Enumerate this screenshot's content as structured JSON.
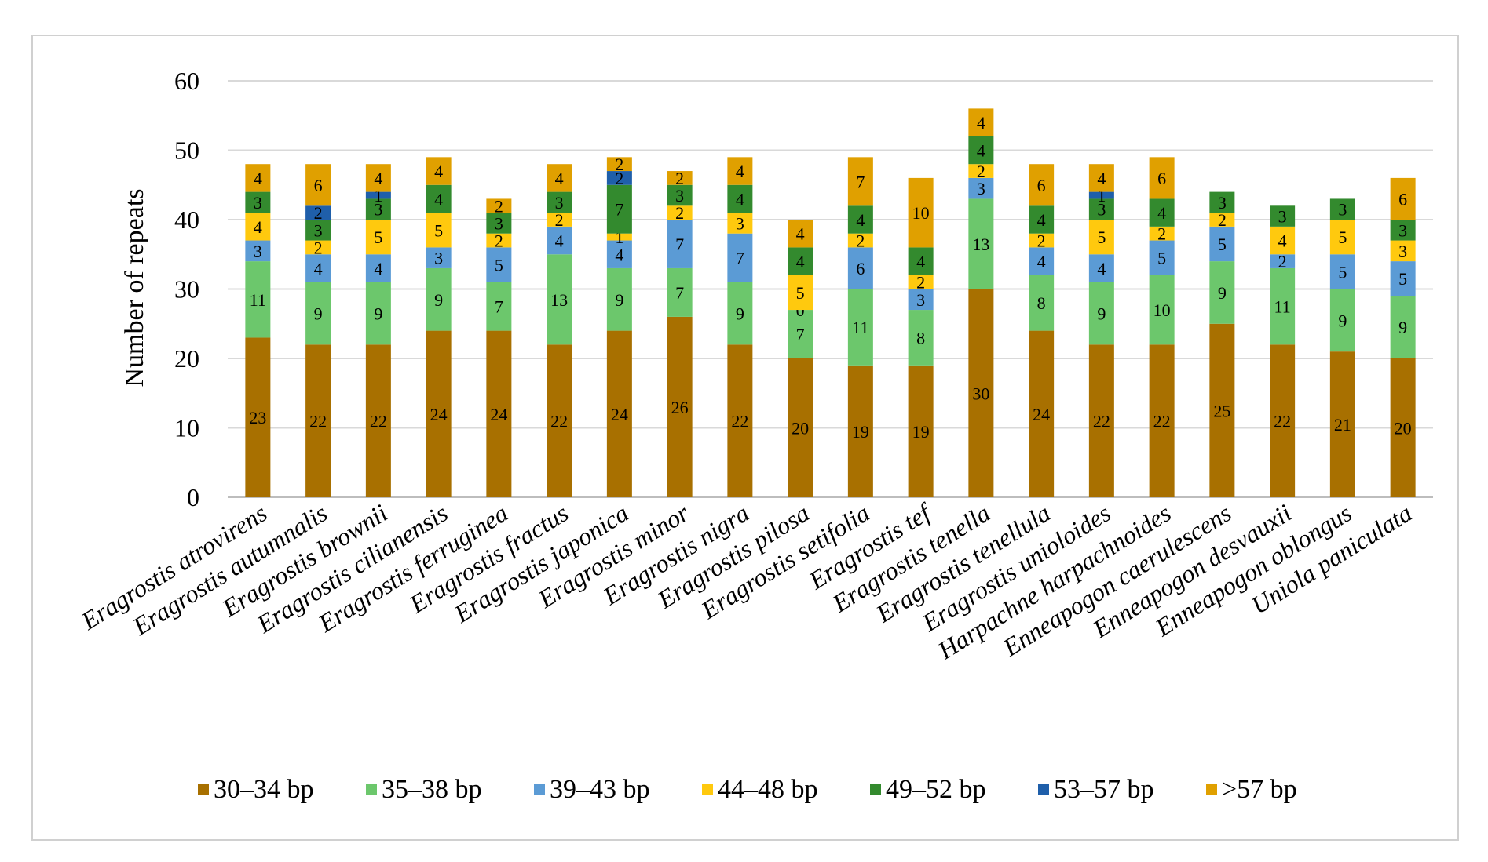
{
  "chart_data": {
    "type": "bar",
    "stacked": true,
    "title": "",
    "xlabel": "",
    "ylabel": "Number of repeats",
    "ylim": [
      0,
      60
    ],
    "yticks": [
      0,
      10,
      20,
      30,
      40,
      50,
      60
    ],
    "grid": true,
    "legend_position": "bottom",
    "categories": [
      "Eragrostis atrovirens",
      "Eragrostis autumnalis",
      "Eragrostis brownii",
      "Eragrostis cilianensis",
      "Eragrostis ferruginea",
      "Eragrostis fractus",
      "Eragrostis japonica",
      "Eragrostis minor",
      "Eragrostis nigra",
      "Eragrostis pilosa",
      "Eragrostis setifolia",
      "Eragrostis tef",
      "Eragrostis tenella",
      "Eragrostis tenellula",
      "Eragrostis unioloides",
      "Harpachne harpachnoides",
      "Enneapogon caerulescens",
      "Enneapogon desvauxii",
      "Enneapogon oblongus",
      "Uniola paniculata"
    ],
    "series": [
      {
        "name": "30–34 bp",
        "color": "#A87000",
        "values": [
          23,
          22,
          22,
          24,
          24,
          22,
          24,
          26,
          22,
          20,
          19,
          19,
          30,
          24,
          22,
          22,
          25,
          22,
          21,
          20
        ]
      },
      {
        "name": "35–38 bp",
        "color": "#6CC76C",
        "values": [
          11,
          9,
          9,
          9,
          7,
          13,
          9,
          7,
          9,
          7,
          11,
          8,
          13,
          8,
          9,
          10,
          9,
          11,
          9,
          9
        ]
      },
      {
        "name": "39–43 bp",
        "color": "#5B9BD5",
        "values": [
          3,
          4,
          4,
          3,
          5,
          4,
          4,
          7,
          7,
          0,
          6,
          3,
          3,
          4,
          4,
          5,
          5,
          2,
          5,
          5
        ]
      },
      {
        "name": "44–48 bp",
        "color": "#FFC90E",
        "values": [
          4,
          2,
          5,
          5,
          2,
          2,
          1,
          2,
          3,
          5,
          2,
          2,
          2,
          2,
          5,
          2,
          2,
          4,
          5,
          3
        ]
      },
      {
        "name": "49–52 bp",
        "color": "#338A2E",
        "values": [
          3,
          3,
          3,
          4,
          3,
          3,
          7,
          3,
          4,
          4,
          4,
          4,
          4,
          4,
          3,
          4,
          3,
          3,
          3,
          3
        ]
      },
      {
        "name": "53–57 bp",
        "color": "#1F5FAA",
        "values": [
          0,
          2,
          1,
          0,
          0,
          0,
          2,
          0,
          0,
          0,
          0,
          0,
          0,
          0,
          1,
          0,
          0,
          0,
          0,
          0
        ]
      },
      {
        "name": ">57 bp",
        "color": "#E0A000",
        "values": [
          4,
          6,
          4,
          4,
          2,
          4,
          2,
          2,
          4,
          4,
          7,
          10,
          4,
          6,
          4,
          6,
          0,
          0,
          0,
          6
        ]
      }
    ],
    "value_labels": [
      [
        "23",
        "11",
        "3",
        "4",
        "3",
        "",
        "4"
      ],
      [
        "22",
        "9",
        "4",
        "2",
        "3",
        "2",
        "6"
      ],
      [
        "22",
        "9",
        "4",
        "5",
        "3",
        "1",
        "4"
      ],
      [
        "24",
        "9",
        "3",
        "5",
        "4",
        "",
        "4"
      ],
      [
        "24",
        "7",
        "5",
        "2",
        "3",
        "",
        "2"
      ],
      [
        "22",
        "13",
        "4",
        "2",
        "3",
        "",
        "4"
      ],
      [
        "24",
        "9",
        "4",
        "1",
        "7",
        "2",
        "2"
      ],
      [
        "26",
        "7",
        "7",
        "2",
        "3",
        "",
        "2"
      ],
      [
        "22",
        "9",
        "7",
        "3",
        "4",
        "",
        "4"
      ],
      [
        "20",
        "7",
        "0",
        "5",
        "4",
        "",
        "4"
      ],
      [
        "19",
        "11",
        "6",
        "2",
        "4",
        "",
        "7"
      ],
      [
        "19",
        "8",
        "3",
        "2",
        "4",
        "",
        "10"
      ],
      [
        "30",
        "13",
        "3",
        "2",
        "4",
        "",
        "4"
      ],
      [
        "24",
        "8",
        "4",
        "2",
        "4",
        "",
        "6"
      ],
      [
        "22",
        "9",
        "4",
        "5",
        "3",
        "1",
        "4"
      ],
      [
        "22",
        "10",
        "5",
        "2",
        "4",
        "",
        "6"
      ],
      [
        "25",
        "9",
        "5",
        "2",
        "3",
        "",
        ""
      ],
      [
        "22",
        "11",
        "2",
        "4",
        "3",
        "",
        ""
      ],
      [
        "21",
        "9",
        "5",
        "5",
        "3",
        "",
        ""
      ],
      [
        "20",
        "9",
        "5",
        "3",
        "3",
        "",
        "6"
      ]
    ]
  }
}
